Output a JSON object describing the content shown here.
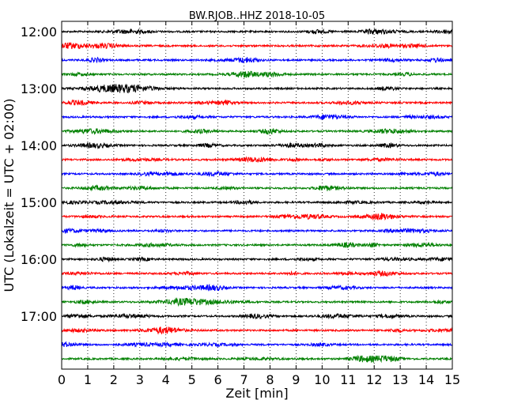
{
  "chart_data": {
    "type": "line",
    "title": "BW.RJOB..HHZ 2018-10-05",
    "xlabel": "Zeit  [min]",
    "ylabel": "UTC (Lokalzeit = UTC + 02:00)",
    "xlim": [
      0,
      15
    ],
    "x_ticks": [
      0,
      1,
      2,
      3,
      4,
      5,
      6,
      7,
      8,
      9,
      10,
      11,
      12,
      13,
      14,
      15
    ],
    "x_tick_labels": [
      "0",
      "1",
      "2",
      "3",
      "4",
      "5",
      "6",
      "7",
      "8",
      "9",
      "10",
      "11",
      "12",
      "13",
      "14",
      "15"
    ],
    "y_tick_labels": [
      "12:00",
      "13:00",
      "14:00",
      "15:00",
      "16:00",
      "17:00"
    ],
    "grid": "vertical dotted",
    "colors": [
      "#000000",
      "#ff0000",
      "#0000ff",
      "#008000"
    ],
    "traces": [
      {
        "start": "12:00",
        "color": "#000000"
      },
      {
        "start": "12:15",
        "color": "#ff0000"
      },
      {
        "start": "12:30",
        "color": "#0000ff"
      },
      {
        "start": "12:45",
        "color": "#008000"
      },
      {
        "start": "13:00",
        "color": "#000000"
      },
      {
        "start": "13:15",
        "color": "#ff0000"
      },
      {
        "start": "13:30",
        "color": "#0000ff"
      },
      {
        "start": "13:45",
        "color": "#008000"
      },
      {
        "start": "14:00",
        "color": "#000000"
      },
      {
        "start": "14:15",
        "color": "#ff0000"
      },
      {
        "start": "14:30",
        "color": "#0000ff"
      },
      {
        "start": "14:45",
        "color": "#008000"
      },
      {
        "start": "15:00",
        "color": "#000000"
      },
      {
        "start": "15:15",
        "color": "#ff0000"
      },
      {
        "start": "15:30",
        "color": "#0000ff"
      },
      {
        "start": "15:45",
        "color": "#008000"
      },
      {
        "start": "16:00",
        "color": "#000000"
      },
      {
        "start": "16:15",
        "color": "#ff0000"
      },
      {
        "start": "16:30",
        "color": "#0000ff"
      },
      {
        "start": "16:45",
        "color": "#008000"
      },
      {
        "start": "17:00",
        "color": "#000000"
      },
      {
        "start": "17:15",
        "color": "#ff0000"
      },
      {
        "start": "17:30",
        "color": "#0000ff"
      },
      {
        "start": "17:45",
        "color": "#008000"
      }
    ]
  }
}
